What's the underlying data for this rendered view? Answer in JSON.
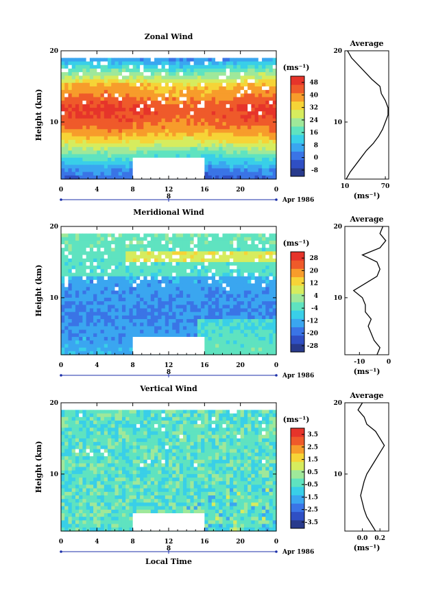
{
  "figure": {
    "xlabel": "Local Time",
    "date_label": "Apr 1986",
    "day_label": "8"
  },
  "chart_data": [
    {
      "type": "heatmap",
      "title": "Zonal Wind",
      "ylabel": "Height (km)",
      "x_ticks": [
        "0",
        "4",
        "8",
        "12",
        "16",
        "20",
        "0"
      ],
      "y_ticks": [
        "10",
        "20"
      ],
      "xlim": [
        0,
        24
      ],
      "ylim": [
        2,
        20
      ],
      "colorbar": {
        "unit": "(ms⁻¹)",
        "ticks": [
          "48",
          "40",
          "32",
          "24",
          "16",
          "8",
          "0",
          "-8"
        ],
        "min": -12,
        "max": 52
      },
      "missing_block": {
        "x": [
          8,
          16
        ],
        "y": [
          2,
          5
        ]
      },
      "average": {
        "title": "Average",
        "x_ticks": [
          "10",
          "70"
        ],
        "xlim": [
          10,
          75
        ],
        "xlabel": "(ms⁻¹)",
        "heights": [
          2,
          3,
          4,
          5,
          6,
          7,
          8,
          9,
          10,
          11,
          12,
          13,
          14,
          15,
          16,
          17,
          18,
          19,
          20
        ],
        "values": [
          12,
          18,
          26,
          34,
          42,
          52,
          60,
          66,
          70,
          74,
          74,
          70,
          64,
          62,
          50,
          40,
          30,
          20,
          14
        ]
      }
    },
    {
      "type": "heatmap",
      "title": "Meridional Wind",
      "ylabel": "Height (km)",
      "x_ticks": [
        "0",
        "4",
        "8",
        "12",
        "16",
        "20",
        "0"
      ],
      "y_ticks": [
        "10",
        "20"
      ],
      "xlim": [
        0,
        24
      ],
      "ylim": [
        2,
        20
      ],
      "colorbar": {
        "unit": "(ms⁻¹)",
        "ticks": [
          "28",
          "20",
          "12",
          "4",
          "-4",
          "-12",
          "-20",
          "-28"
        ],
        "min": -32,
        "max": 32
      },
      "missing_block": {
        "x": [
          8,
          16
        ],
        "y": [
          2,
          4.5
        ]
      },
      "average": {
        "title": "Average",
        "x_ticks": [
          "-10",
          "0"
        ],
        "xlim": [
          -15,
          0
        ],
        "xlabel": "(ms⁻¹)",
        "heights": [
          2,
          3,
          4,
          5,
          6,
          7,
          8,
          9,
          10,
          11,
          12,
          13,
          14,
          15,
          16,
          17,
          18,
          19,
          20
        ],
        "values": [
          -4,
          -3,
          -5,
          -6,
          -7,
          -6,
          -8,
          -8,
          -9,
          -12,
          -8,
          -4,
          -3,
          -4,
          -9,
          -3,
          -1,
          -3,
          -2
        ]
      }
    },
    {
      "type": "heatmap",
      "title": "Vertical Wind",
      "ylabel": "Height (km)",
      "x_ticks": [
        "0",
        "4",
        "8",
        "12",
        "16",
        "20",
        "0"
      ],
      "y_ticks": [
        "10",
        "20"
      ],
      "xlim": [
        0,
        24
      ],
      "ylim": [
        2,
        20
      ],
      "colorbar": {
        "unit": "(ms⁻¹)",
        "ticks": [
          "3.5",
          "2.5",
          "1.5",
          "0.5",
          "-0.5",
          "-1.5",
          "-2.5",
          "-3.5"
        ],
        "min": -4,
        "max": 4
      },
      "missing_block": {
        "x": [
          8,
          16
        ],
        "y": [
          2,
          4.5
        ]
      },
      "average": {
        "title": "Average",
        "x_ticks": [
          "0.0",
          "0.2"
        ],
        "xlim": [
          -0.2,
          0.3
        ],
        "xlabel": "(ms⁻¹)",
        "heights": [
          2,
          3,
          4,
          5,
          6,
          7,
          8,
          9,
          10,
          11,
          12,
          13,
          14,
          15,
          16,
          17,
          18,
          19,
          20
        ],
        "values": [
          0.15,
          0.1,
          0.05,
          0.02,
          0.0,
          -0.02,
          0.0,
          0.02,
          0.05,
          0.1,
          0.15,
          0.2,
          0.25,
          0.2,
          0.15,
          0.05,
          0.02,
          -0.05,
          0.0
        ]
      }
    }
  ]
}
